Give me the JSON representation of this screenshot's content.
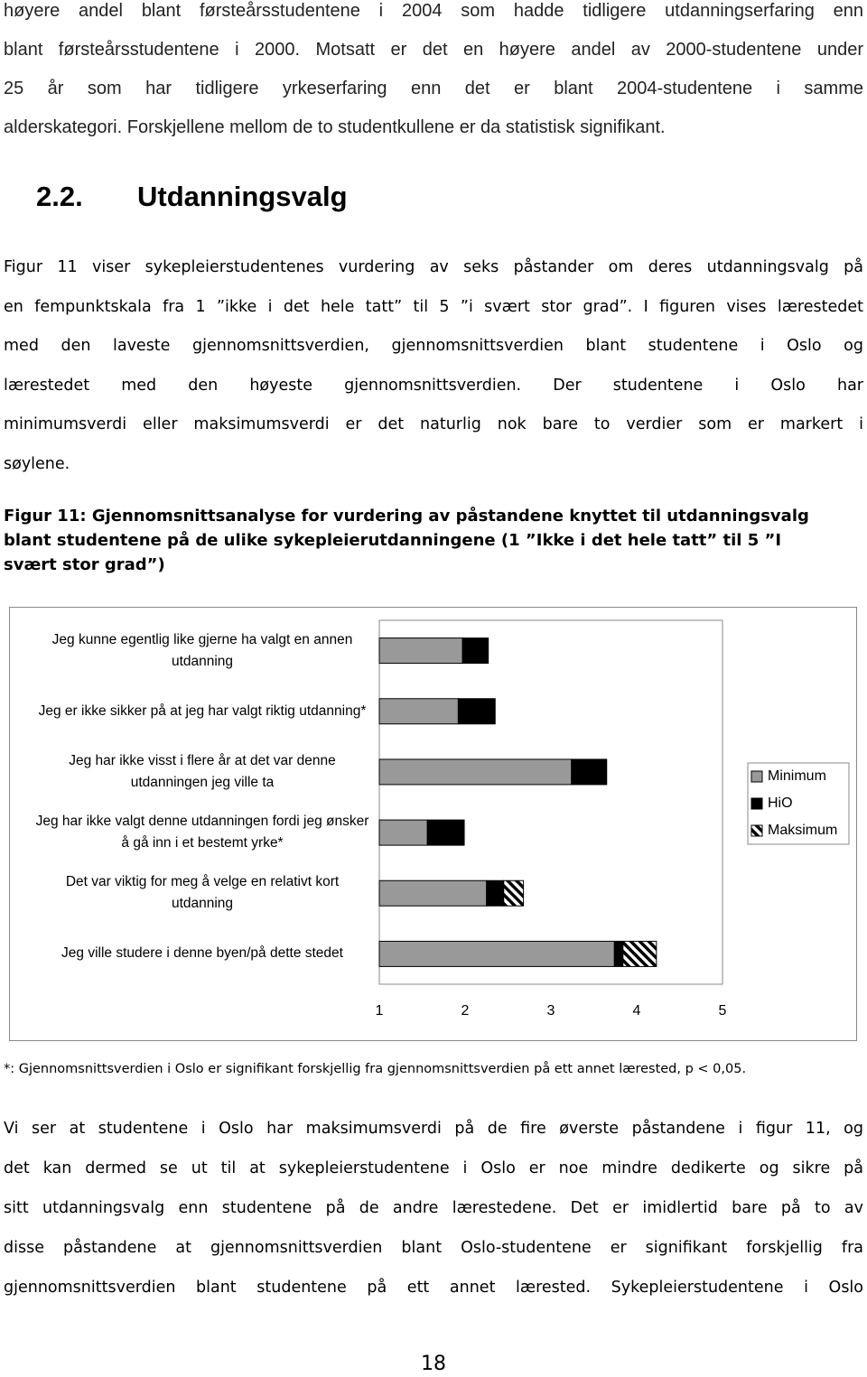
{
  "intro": {
    "lines": [
      "høyere andel blant førsteårsstudentene i 2004 som hadde tidligere utdanningserfaring enn",
      "blant førsteårsstudentene i 2000. Motsatt er det en høyere andel av 2000-studentene under",
      "25 år som har tidligere yrkeserfaring enn det er blant 2004-studentene i samme",
      "alderskategori. Forskjellene mellom de to studentkullene er da statistisk signifikant."
    ]
  },
  "heading": {
    "number": "2.2.",
    "title": "Utdanningsvalg"
  },
  "paragraph1": {
    "lines": [
      "Figur 11 viser sykepleierstudentenes vurdering av seks påstander om deres utdanningsvalg på",
      "en fempunktskala fra 1 ”ikke i det hele tatt” til 5 ”i svært stor grad”. I figuren vises lærestedet",
      "med den laveste gjennomsnittsverdien, gjennomsnittsverdien blant studentene i Oslo og",
      "lærestedet med den høyeste gjennomsnittsverdien. Der studentene i Oslo har",
      "minimumsverdi eller maksimumsverdi er det naturlig nok bare to verdier som er markert i",
      "søylene."
    ]
  },
  "figure_caption": {
    "lines": [
      "Figur 11: Gjennomsnittsanalyse for vurdering av påstandene knyttet til utdanningsvalg",
      "blant studentene på de ulike sykepleierutdanningene (1 ”Ikke i det hele tatt” til 5 ”I",
      "svært stor grad”)"
    ]
  },
  "chart_data": {
    "type": "bar",
    "orientation": "horizontal",
    "categories": [
      "Jeg kunne egentlig like gjerne ha valgt en annen utdanning",
      "Jeg er ikke sikker på at jeg har valgt riktig utdanning*",
      "Jeg har ikke visst i flere år at det var denne utdanningen jeg ville ta",
      "Jeg har ikke valgt denne utdanningen fordi jeg ønsker å gå inn i et bestemt yrke*",
      "Det var viktig for meg å velge en relativt kort utdanning",
      "Jeg ville studere i denne byen/på dette stedet"
    ],
    "series": [
      {
        "name": "Minimum",
        "color": "#999999",
        "values": [
          1.97,
          1.92,
          3.24,
          1.56,
          2.25,
          3.74
        ]
      },
      {
        "name": "HiO",
        "color": "#000000",
        "values": [
          2.27,
          2.35,
          3.65,
          1.99,
          2.45,
          3.84
        ]
      },
      {
        "name": "Maksimum",
        "color": "#000000",
        "pattern": "hatch",
        "values": [
          null,
          null,
          null,
          null,
          2.68,
          4.23
        ]
      }
    ],
    "xlim": [
      1,
      5
    ],
    "xticks": [
      1,
      2,
      3,
      4,
      5
    ],
    "grid": false,
    "legend": "right"
  },
  "footnote": "*: Gjennomsnittsverdien i Oslo er signifikant forskjellig fra gjennomsnittsverdien på ett annet lærested, p < 0,05.",
  "paragraph2": {
    "lines": [
      "Vi ser at studentene i Oslo har maksimumsverdi på de fire øverste påstandene i figur 11, og",
      "det kan dermed se ut til at sykepleierstudentene i Oslo er noe mindre dedikerte og sikre på",
      "sitt utdanningsvalg enn studentene på de andre lærestedene. Det er imidlertid bare på to av",
      "disse påstandene at gjennomsnittsverdien blant Oslo-studentene er signifikant forskjellig fra",
      "gjennomsnittsverdien blant studentene på ett annet lærested. Sykepleierstudentene i Oslo"
    ]
  },
  "page_number": "18"
}
